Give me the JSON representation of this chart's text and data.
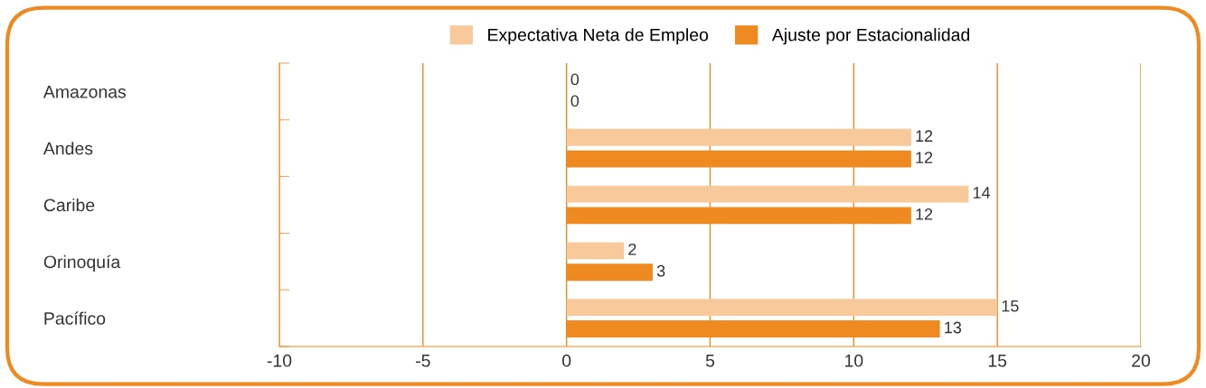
{
  "chart_data": {
    "type": "bar",
    "orientation": "horizontal",
    "categories": [
      "Amazonas",
      "Andes",
      "Caribe",
      "Orinoquía",
      "Pacífico"
    ],
    "series": [
      {
        "name": "Expectativa Neta de Empleo",
        "color": "#f8c99a",
        "values": [
          0,
          12,
          14,
          2,
          15
        ]
      },
      {
        "name": "Ajuste por Estacionalidad",
        "color": "#ef8a21",
        "values": [
          0,
          12,
          12,
          3,
          13
        ]
      }
    ],
    "xlim": [
      -10,
      20
    ],
    "xticks": [
      -10,
      -5,
      0,
      5,
      10,
      15,
      20
    ],
    "grid": "x",
    "legend": "top",
    "data_labels": true
  }
}
